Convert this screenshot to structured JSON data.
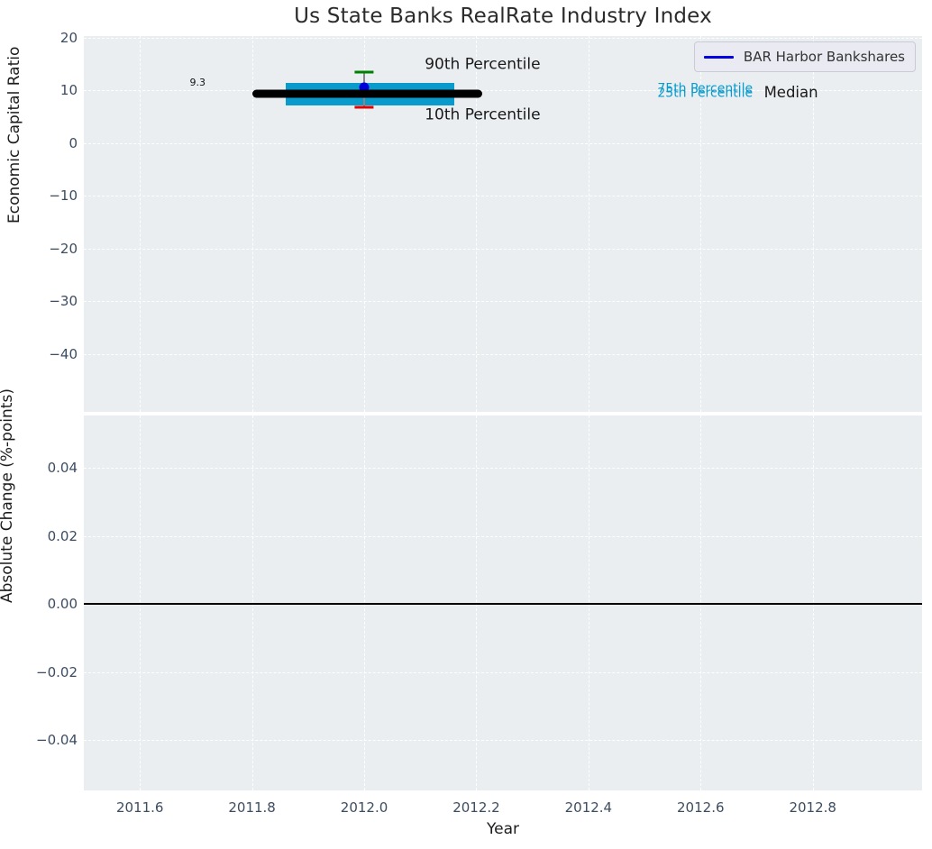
{
  "title": "Us State Banks RealRate Industry Index",
  "legend": {
    "label": "BAR Harbor Bankshares",
    "line_color": "#0000e0"
  },
  "x_axis": {
    "label": "Year",
    "xlim": [
      2011.5,
      2012.995
    ],
    "ticks": [
      2011.6,
      2011.8,
      2012.0,
      2012.2,
      2012.4,
      2012.6,
      2012.8
    ],
    "tick_labels": [
      "2011.6",
      "2011.8",
      "2012.0",
      "2012.2",
      "2012.4",
      "2012.6",
      "2012.8"
    ]
  },
  "top_plot": {
    "ylabel": "Economic Capital Ratio",
    "ylim": [
      -51.0,
      20.26
    ],
    "yticks": [
      20,
      10,
      0,
      -10,
      -20,
      -30,
      -40
    ],
    "ytick_labels": [
      "20",
      "10",
      "0",
      "−10",
      "−20",
      "−30",
      "−40"
    ]
  },
  "bottom_plot": {
    "ylabel": "Absolute Change (%-points)",
    "ylim": [
      -0.0548,
      0.0554
    ],
    "yticks": [
      0.04,
      0.02,
      0.0,
      -0.02,
      -0.04
    ],
    "ytick_labels": [
      "0.04",
      "0.02",
      "0.00",
      "−0.02",
      "−0.04"
    ],
    "zero_line_y": 0.0
  },
  "colors": {
    "plot_background": "#eaeef1",
    "grid": "#ffffff",
    "tick_label": "#3c4c61",
    "iqr_box": "#0a9bcd",
    "median_line": "#000000",
    "whisker": "#888888",
    "cap_90th": "#008000",
    "cap_10th": "#e60000",
    "company_point": "#0000dd",
    "zero_line": "#000000"
  },
  "chart_data": {
    "type": "boxplot+line",
    "title": "Us State Banks RealRate Industry Index",
    "xlabel": "Year",
    "top_panel": {
      "ylabel": "Economic Capital Ratio",
      "x_center": 2012.0,
      "median": 9.3,
      "percentile_75": 11.4,
      "percentile_25": 7.1,
      "percentile_90": 13.4,
      "percentile_10": 6.8,
      "company_series": {
        "name": "BAR Harbor Bankshares",
        "x": 2012.0,
        "y": 10.5
      },
      "median_line_span": [
        2011.8,
        2012.21
      ],
      "box_span": [
        2011.86,
        2012.16
      ],
      "cap_halfwidth": 0.017,
      "annotations": [
        {
          "text": "9.3",
          "x": 2011.703,
          "y": 11.4,
          "color": "#111111",
          "size": 11,
          "align": "center"
        },
        {
          "text": "90th Percentile",
          "x": 2012.108,
          "y": 14.8,
          "color": "#1a1a1a",
          "size": 17,
          "align": "left"
        },
        {
          "text": "10th Percentile",
          "x": 2012.108,
          "y": 5.2,
          "color": "#1a1a1a",
          "size": 17,
          "align": "left"
        },
        {
          "text": "75th Percentile",
          "x": 2012.523,
          "y": 10.1,
          "color": "#0a9bcd",
          "size": 14,
          "align": "left"
        },
        {
          "text": "25th Percentile",
          "x": 2012.523,
          "y": 9.4,
          "color": "#0a9bcd",
          "size": 14,
          "align": "left"
        },
        {
          "text": "Median",
          "x": 2012.713,
          "y": 9.55,
          "color": "#1a1a1a",
          "size": 16.5,
          "align": "left"
        }
      ]
    },
    "bottom_panel": {
      "ylabel": "Absolute Change (%-points)",
      "zero_line": 0.0,
      "series": []
    }
  }
}
